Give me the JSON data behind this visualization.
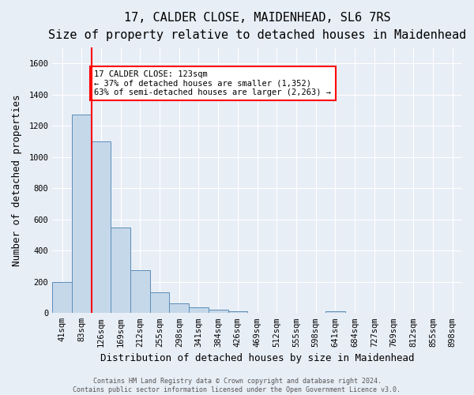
{
  "title": "17, CALDER CLOSE, MAIDENHEAD, SL6 7RS",
  "subtitle": "Size of property relative to detached houses in Maidenhead",
  "xlabel": "Distribution of detached houses by size in Maidenhead",
  "ylabel": "Number of detached properties",
  "footer_line1": "Contains HM Land Registry data © Crown copyright and database right 2024.",
  "footer_line2": "Contains public sector information licensed under the Open Government Licence v3.0.",
  "annotation_line1": "17 CALDER CLOSE: 123sqm",
  "annotation_line2": "← 37% of detached houses are smaller (1,352)",
  "annotation_line3": "63% of semi-detached houses are larger (2,263) →",
  "bar_labels": [
    "41sqm",
    "83sqm",
    "126sqm",
    "169sqm",
    "212sqm",
    "255sqm",
    "298sqm",
    "341sqm",
    "384sqm",
    "426sqm",
    "469sqm",
    "512sqm",
    "555sqm",
    "598sqm",
    "641sqm",
    "684sqm",
    "727sqm",
    "769sqm",
    "812sqm",
    "855sqm",
    "898sqm"
  ],
  "bar_values": [
    197,
    1270,
    1100,
    550,
    275,
    135,
    62,
    35,
    20,
    14,
    0,
    0,
    0,
    0,
    13,
    0,
    0,
    0,
    0,
    0,
    0
  ],
  "bar_color": "#c5d8ea",
  "bar_edge_color": "#5b8db8",
  "red_line_x": 1.5,
  "ylim": [
    0,
    1700
  ],
  "yticks": [
    0,
    200,
    400,
    600,
    800,
    1000,
    1200,
    1400,
    1600
  ],
  "background_color": "#e8eef6",
  "plot_bg_color": "#e8eef6",
  "grid_color": "#ffffff",
  "title_fontsize": 11,
  "subtitle_fontsize": 9.5,
  "axis_label_fontsize": 9,
  "tick_fontsize": 7.5,
  "footer_fontsize": 6,
  "annot_fontsize": 7.5
}
